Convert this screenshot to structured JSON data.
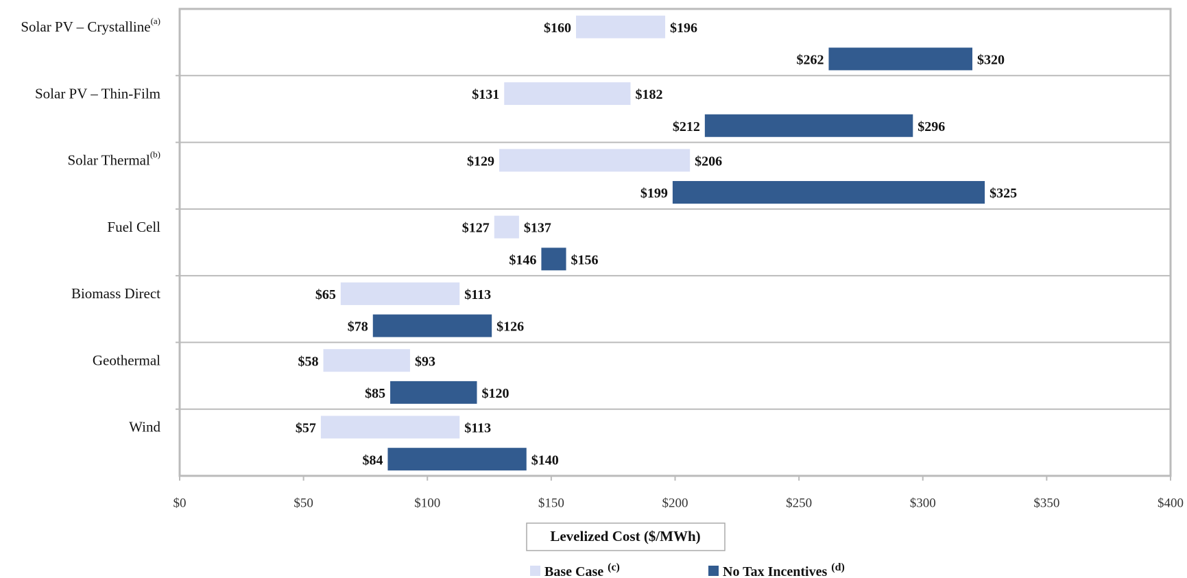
{
  "chart_data": {
    "type": "range",
    "x_label": "Levelized Cost ($/MWh)",
    "categories": [
      "Solar PV – Crystalline",
      "Solar PV – Thin-Film",
      "Solar Thermal",
      "Fuel Cell",
      "Biomass Direct",
      "Geothermal",
      "Wind"
    ],
    "category_notes": [
      "(a)",
      null,
      "(b)",
      null,
      null,
      null,
      null
    ],
    "series": [
      {
        "name": "Base Case",
        "note": "(c)",
        "color": "#d9dff5",
        "low": [
          160,
          131,
          129,
          127,
          65,
          58,
          57
        ],
        "high": [
          196,
          182,
          206,
          137,
          113,
          93,
          113
        ],
        "low_labels": [
          "$160",
          "$131",
          "$129",
          "$127",
          "$65",
          "$58",
          "$57"
        ],
        "high_labels": [
          "$196",
          "$182",
          "$206",
          "$137",
          "$113",
          "$93",
          "$113"
        ]
      },
      {
        "name": "No Tax Incentives",
        "note": "(d)",
        "color": "#325b8f",
        "low": [
          262,
          212,
          199,
          146,
          78,
          85,
          84
        ],
        "high": [
          320,
          296,
          325,
          156,
          126,
          120,
          140
        ],
        "low_labels": [
          "$262",
          "$212",
          "$199",
          "$146",
          "$78",
          "$85",
          "$84"
        ],
        "high_labels": [
          "$320",
          "$296",
          "$325",
          "$156",
          "$126",
          "$120",
          "$140"
        ]
      }
    ],
    "xlim": [
      0,
      400
    ],
    "xticks": [
      {
        "value": 0,
        "label": "$0"
      },
      {
        "value": 50,
        "label": "$50"
      },
      {
        "value": 100,
        "label": "$100"
      },
      {
        "value": 150,
        "label": "$150"
      },
      {
        "value": 200,
        "label": "$200"
      },
      {
        "value": 250,
        "label": "$250"
      },
      {
        "value": 300,
        "label": "$300"
      },
      {
        "value": 350,
        "label": "$350"
      },
      {
        "value": 400,
        "label": "$400"
      }
    ],
    "grid": true
  }
}
